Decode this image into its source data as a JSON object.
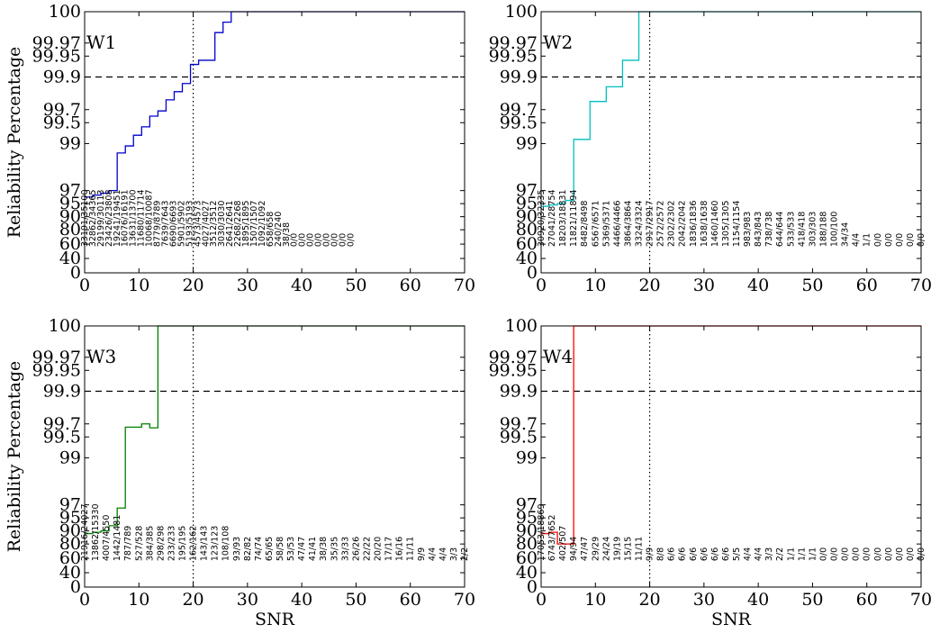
{
  "chart_data": [
    {
      "type": "line",
      "step": true,
      "panel_label": "W1",
      "color": "#0000cc",
      "xlabel": "",
      "ylabel": "Reliability Percentage",
      "xlim": [
        0,
        70
      ],
      "x_ticks": [
        "0",
        "10",
        "20",
        "30",
        "40",
        "50",
        "60",
        "70"
      ],
      "y_ticks": [
        "0",
        "40",
        "60",
        "80",
        "90",
        "95",
        "97",
        "99",
        "99.5",
        "99.7",
        "99.9",
        "99.95",
        "99.97",
        "100"
      ],
      "threshold_y": 99.9,
      "vline_x": 20,
      "x": [
        0,
        1.5,
        3,
        4.5,
        6,
        7.5,
        9,
        10.5,
        12,
        13.5,
        15,
        16.5,
        18,
        19.5,
        21,
        22.5,
        24,
        25.5,
        27,
        28.5,
        30,
        31.5,
        33,
        34.5,
        36,
        37.5,
        39,
        40.5,
        42,
        43.5,
        45,
        46.5,
        48,
        49.5,
        51,
        52.5,
        54,
        55.5,
        57,
        58.5,
        60,
        61.5,
        63,
        64.5,
        66,
        67.5,
        69,
        70
      ],
      "values": [
        96.0,
        96.3,
        96.6,
        97.0,
        98.6,
        98.9,
        99.2,
        99.4,
        99.6,
        99.68,
        99.76,
        99.81,
        99.86,
        99.93,
        99.94,
        99.94,
        99.98,
        99.99,
        100,
        100,
        100,
        100,
        100,
        100,
        100,
        100,
        100,
        100,
        100,
        100,
        100,
        100,
        100,
        100,
        100,
        100,
        100,
        100,
        100,
        100,
        100,
        100,
        100,
        100,
        100,
        100,
        100,
        100
      ],
      "annotations": [
        "33191/35100",
        "32862/34365",
        "29199/30113",
        "23426/23808",
        "19241/19451",
        "16076/16191",
        "13631/13700",
        "11680/11714",
        "10068/10087",
        "8779/8789",
        "7639/7643",
        "6690/6693",
        "5901/5902",
        "5193/5193",
        "4573/4573",
        "4027/4027",
        "3512/3512",
        "3030/3030",
        "2641/2641",
        "2268/2268",
        "1895/1895",
        "1507/1507",
        "1092/1092",
        "658/658",
        "240/240",
        "38/38",
        "0/0",
        "0/0",
        "0/0",
        "0/0",
        "0/0",
        "0/0",
        "0/0",
        "0/0"
      ]
    },
    {
      "type": "line",
      "step": true,
      "panel_label": "W2",
      "color": "#00bfbf",
      "xlabel": "",
      "ylabel": "",
      "xlim": [
        0,
        70
      ],
      "x_ticks": [
        "0",
        "10",
        "20",
        "30",
        "40",
        "50",
        "60",
        "70"
      ],
      "y_ticks": [
        "0",
        "40",
        "60",
        "80",
        "90",
        "95",
        "97",
        "99",
        "99.5",
        "99.7",
        "99.9",
        "99.95",
        "99.97",
        "100"
      ],
      "threshold_y": 99.9,
      "vline_x": 20,
      "x": [
        0,
        1.5,
        3,
        4.5,
        6,
        7.5,
        9,
        10.5,
        12,
        13.5,
        15,
        16.5,
        18,
        19.5,
        21,
        22.5,
        24,
        25.5,
        27,
        28.5,
        30,
        31.5,
        33,
        34.5,
        36,
        37.5,
        39,
        40.5,
        42,
        43.5,
        45,
        46.5,
        48,
        49.5,
        51,
        52.5,
        54,
        55.5,
        57,
        58.5,
        60,
        61.5,
        63,
        64.5,
        66,
        67.5,
        69,
        70
      ],
      "values": [
        94.0,
        94.5,
        95.0,
        95.5,
        99.1,
        99.1,
        99.75,
        99.75,
        99.84,
        99.84,
        99.94,
        99.94,
        100,
        100,
        100,
        100,
        100,
        100,
        100,
        100,
        100,
        100,
        100,
        100,
        100,
        100,
        100,
        100,
        100,
        100,
        100,
        100,
        100,
        100,
        100,
        100,
        100,
        100,
        100,
        100,
        100,
        100,
        100,
        100,
        100,
        100,
        100,
        100
      ],
      "annotations": [
        "30920/32335",
        "27041/28754",
        "18203/18831",
        "11821/11894",
        "8482/8498",
        "6567/6571",
        "5369/5371",
        "4466/4466",
        "3864/3864",
        "3324/3324",
        "2917/2917",
        "2572/2572",
        "2302/2302",
        "2042/2042",
        "1836/1836",
        "1638/1638",
        "1460/1460",
        "1305/1305",
        "1154/1154",
        "983/983",
        "843/843",
        "738/738",
        "644/644",
        "533/533",
        "418/418",
        "303/303",
        "188/188",
        "100/100",
        "34/34",
        "4/4",
        "1/1",
        "0/0",
        "0/0",
        "0/0",
        "0/0",
        "0/0"
      ]
    },
    {
      "type": "line",
      "step": true,
      "panel_label": "W3",
      "color": "#008000",
      "xlabel": "SNR",
      "ylabel": "Reliability Percentage",
      "xlim": [
        0,
        70
      ],
      "x_ticks": [
        "0",
        "10",
        "20",
        "30",
        "40",
        "50",
        "60",
        "70"
      ],
      "y_ticks": [
        "0",
        "40",
        "60",
        "80",
        "90",
        "95",
        "97",
        "99",
        "99.5",
        "99.7",
        "99.9",
        "99.95",
        "99.97",
        "100"
      ],
      "threshold_y": 99.9,
      "vline_x": 20,
      "x": [
        0,
        1.5,
        3,
        4.5,
        6,
        7.5,
        9,
        10.5,
        12,
        13.5,
        15,
        16.5,
        18,
        19.5,
        21,
        22.5,
        24,
        25.5,
        27,
        28.5,
        30,
        31.5,
        33,
        34.5,
        36,
        37.5,
        39,
        40.5,
        42,
        43.5,
        45,
        46.5,
        48,
        49.5,
        51,
        52.5,
        54,
        55.5,
        57,
        58.5,
        60,
        61.5,
        63,
        64.5,
        66,
        67.5,
        69,
        70
      ],
      "values": [
        88.0,
        89.0,
        90.0,
        92.0,
        96.5,
        99.65,
        99.65,
        99.7,
        99.64,
        100,
        100,
        100,
        100,
        100,
        100,
        100,
        100,
        100,
        100,
        100,
        100,
        100,
        100,
        100,
        100,
        100,
        100,
        100,
        100,
        100,
        100,
        100,
        100,
        100,
        100,
        100,
        100,
        100,
        100,
        100,
        100,
        100,
        100,
        100,
        100,
        100,
        100,
        100
      ],
      "annotations": [
        "21916/24027",
        "13862/15330",
        "4007/4550",
        "1442/1481",
        "787/789",
        "527/528",
        "384/385",
        "298/298",
        "233/233",
        "195/195",
        "162/162",
        "143/143",
        "123/123",
        "108/108",
        "93/93",
        "82/82",
        "74/74",
        "65/65",
        "58/58",
        "53/53",
        "47/47",
        "41/41",
        "38/38",
        "35/35",
        "33/33",
        "26/26",
        "22/22",
        "20/20",
        "17/17",
        "16/16",
        "11/11",
        "9/9",
        "4/4",
        "4/4",
        "3/3",
        "2/2"
      ]
    },
    {
      "type": "line",
      "step": true,
      "panel_label": "W4",
      "color": "#ff0000",
      "xlabel": "SNR",
      "ylabel": "",
      "xlim": [
        0,
        70
      ],
      "x_ticks": [
        "0",
        "10",
        "20",
        "30",
        "40",
        "50",
        "60",
        "70"
      ],
      "y_ticks": [
        "0",
        "40",
        "60",
        "80",
        "90",
        "95",
        "97",
        "99",
        "99.5",
        "99.7",
        "99.9",
        "99.95",
        "99.97",
        "100"
      ],
      "threshold_y": 99.9,
      "vline_x": 20,
      "x": [
        0,
        1.5,
        3,
        4.5,
        6,
        7.5,
        9,
        10.5,
        12,
        13.5,
        15,
        16.5,
        18,
        19.5,
        21,
        22.5,
        24,
        25.5,
        27,
        28.5,
        30,
        31.5,
        33,
        34.5,
        36,
        37.5,
        39,
        40.5,
        42,
        43.5,
        45,
        46.5,
        48,
        49.5,
        51,
        52.5,
        54,
        55.5,
        57,
        58.5,
        60,
        61.5,
        63,
        64.5,
        66,
        67.5,
        69,
        70
      ],
      "values": [
        88.0,
        89.0,
        80.0,
        80.0,
        100,
        100,
        100,
        100,
        100,
        100,
        100,
        100,
        100,
        100,
        100,
        100,
        100,
        100,
        100,
        100,
        100,
        100,
        100,
        100,
        100,
        100,
        100,
        100,
        100,
        100,
        100,
        100,
        100,
        100,
        100,
        100,
        100,
        100,
        100,
        100,
        100,
        100,
        100,
        100,
        100,
        100,
        100,
        100
      ],
      "annotations": [
        "17053/18869",
        "6743/7652",
        "402/507",
        "94/94",
        "47/47",
        "29/29",
        "24/24",
        "19/19",
        "15/15",
        "11/11",
        "9/9",
        "8/8",
        "6/6",
        "6/6",
        "6/6",
        "6/6",
        "6/6",
        "6/6",
        "5/5",
        "4/4",
        "4/4",
        "3/3",
        "2/2",
        "1/1",
        "1/1",
        "1/1",
        "0/0",
        "0/0",
        "0/0",
        "0/0",
        "0/0",
        "0/0",
        "0/0",
        "0/0",
        "0/0",
        "0/0"
      ]
    }
  ]
}
